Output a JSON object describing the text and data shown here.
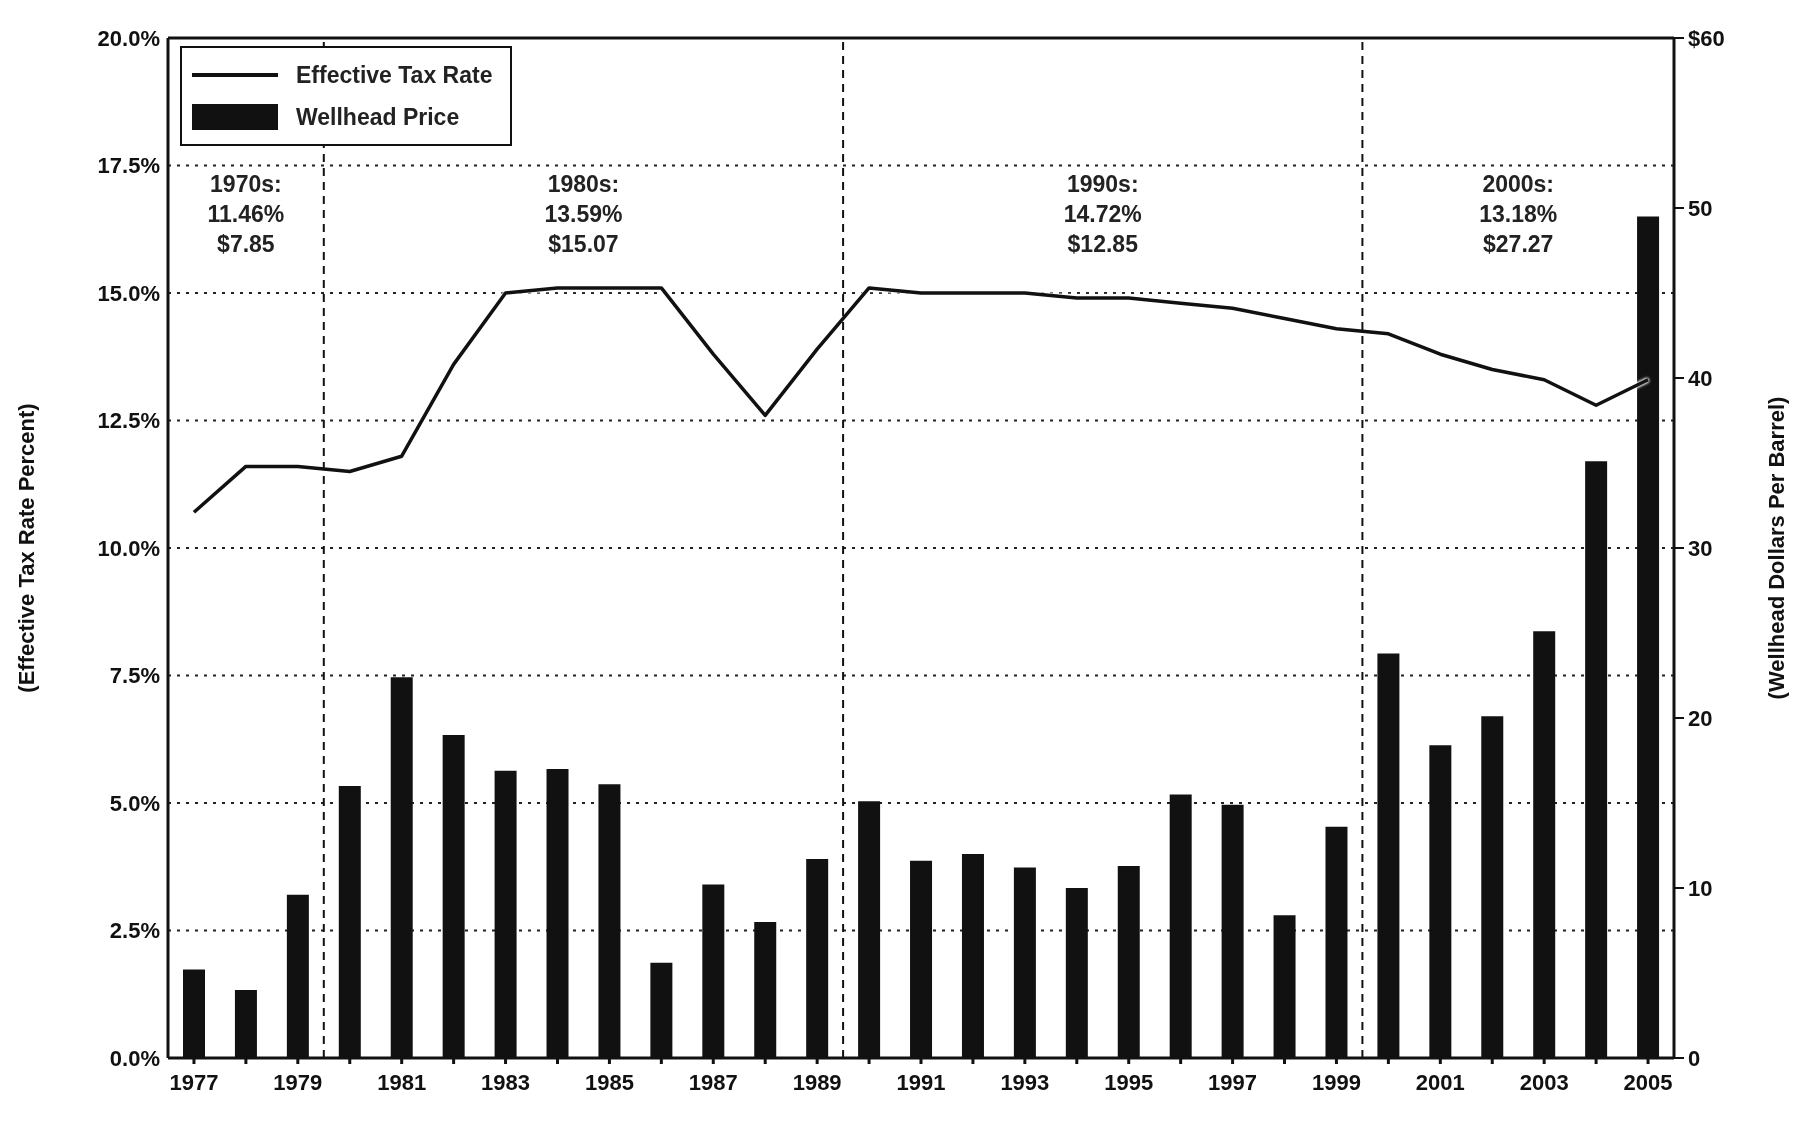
{
  "chart_data": {
    "type": "bar",
    "x": [
      1977,
      1978,
      1979,
      1980,
      1981,
      1982,
      1983,
      1984,
      1985,
      1986,
      1987,
      1988,
      1989,
      1990,
      1991,
      1992,
      1993,
      1994,
      1995,
      1996,
      1997,
      1998,
      1999,
      2000,
      2001,
      2002,
      2003,
      2004,
      2005
    ],
    "xlim": [
      1976.5,
      2005.5
    ],
    "xticks": [
      1977,
      {
        "value": 1978,
        "label": null
      },
      1979,
      {
        "value": 1980,
        "label": null
      },
      1981,
      {
        "value": 1982,
        "label": null
      },
      1983,
      {
        "value": 1984,
        "label": null
      },
      1985,
      {
        "value": 1986,
        "label": null
      },
      1987,
      {
        "value": 1988,
        "label": null
      },
      1989,
      {
        "value": 1990,
        "label": null
      },
      1991,
      {
        "value": 1992,
        "label": null
      },
      1993,
      {
        "value": 1994,
        "label": null
      },
      1995,
      {
        "value": 1996,
        "label": null
      },
      1997,
      {
        "value": 1998,
        "label": null
      },
      1999,
      {
        "value": 2000,
        "label": null
      },
      2001,
      {
        "value": 2002,
        "label": null
      },
      2003,
      {
        "value": 2004,
        "label": null
      },
      2005
    ],
    "ylabel": "(Effective Tax Rate Percent)",
    "y2label": "(Wellhead Dollars Per Barrel)",
    "ylim": [
      0,
      20
    ],
    "yticks": [
      {
        "value": 0,
        "label": "0.0%"
      },
      {
        "value": 2.5,
        "label": "2.5%"
      },
      {
        "value": 5,
        "label": "5.0%"
      },
      {
        "value": 7.5,
        "label": "7.5%"
      },
      {
        "value": 10,
        "label": "10.0%"
      },
      {
        "value": 12.5,
        "label": "12.5%"
      },
      {
        "value": 15,
        "label": "15.0%"
      },
      {
        "value": 17.5,
        "label": "17.5%"
      },
      {
        "value": 20,
        "label": "20.0%"
      }
    ],
    "y2lim": [
      0,
      60
    ],
    "y2ticks": [
      0,
      10,
      20,
      30,
      40,
      50,
      {
        "value": 60,
        "label": "$60"
      }
    ],
    "series": [
      {
        "name": "Effective Tax Rate",
        "type": "line",
        "color": "#111111",
        "values": [
          10.7,
          11.6,
          11.6,
          11.5,
          11.8,
          13.6,
          15.0,
          15.1,
          15.1,
          15.1,
          13.8,
          12.6,
          13.9,
          15.1,
          15.0,
          15.0,
          15.0,
          14.9,
          14.9,
          14.8,
          14.7,
          14.5,
          14.3,
          14.2,
          13.8,
          13.5,
          13.3,
          12.8,
          13.3
        ]
      },
      {
        "name": "Wellhead Price",
        "axis": "y2",
        "color": "#111111",
        "values": [
          5.2,
          4.0,
          9.6,
          16.0,
          22.4,
          19.0,
          16.9,
          17.0,
          16.1,
          5.6,
          10.2,
          8.0,
          11.7,
          15.1,
          11.6,
          12.0,
          11.2,
          10.0,
          11.3,
          15.5,
          14.9,
          8.4,
          13.6,
          23.8,
          18.4,
          20.1,
          25.1,
          35.1,
          49.5
        ]
      }
    ],
    "ref_lines": [
      {
        "axis": "x",
        "value": 1979.5,
        "line_style": "dashed"
      },
      {
        "axis": "x",
        "value": 1989.5,
        "line_style": "dashed"
      },
      {
        "axis": "x",
        "value": 1999.5,
        "line_style": "dashed"
      }
    ],
    "annotations": [
      "1970s:\n11.46%\n$7.85",
      "1980s:\n13.59%\n$15.07",
      "1990s:\n14.72%\n$12.85",
      "2000s:\n13.18%\n$27.27"
    ],
    "grid": "y",
    "legend": "top left",
    "line_style": "solid",
    "marker": "none"
  }
}
